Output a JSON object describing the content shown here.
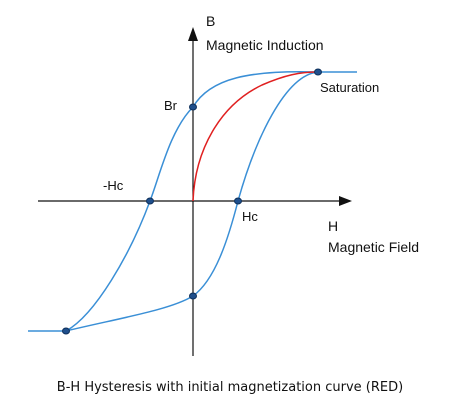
{
  "axes": {
    "b_symbol": "B",
    "b_name": "Magnetic Induction",
    "h_symbol": "H",
    "h_name": "Magnetic Field"
  },
  "points": {
    "saturation": "Saturation",
    "remanence": "Br",
    "coercive_positive": "Hc",
    "coercive_negative": "-Hc"
  },
  "caption": "B-H Hysteresis with initial magnetization curve (RED)",
  "colors": {
    "loop": "#3a8fd6",
    "initial_curve": "#e02020",
    "axes": "#111111",
    "marker_fill": "#1f4f8c",
    "marker_stroke": "#0d2f5a"
  }
}
